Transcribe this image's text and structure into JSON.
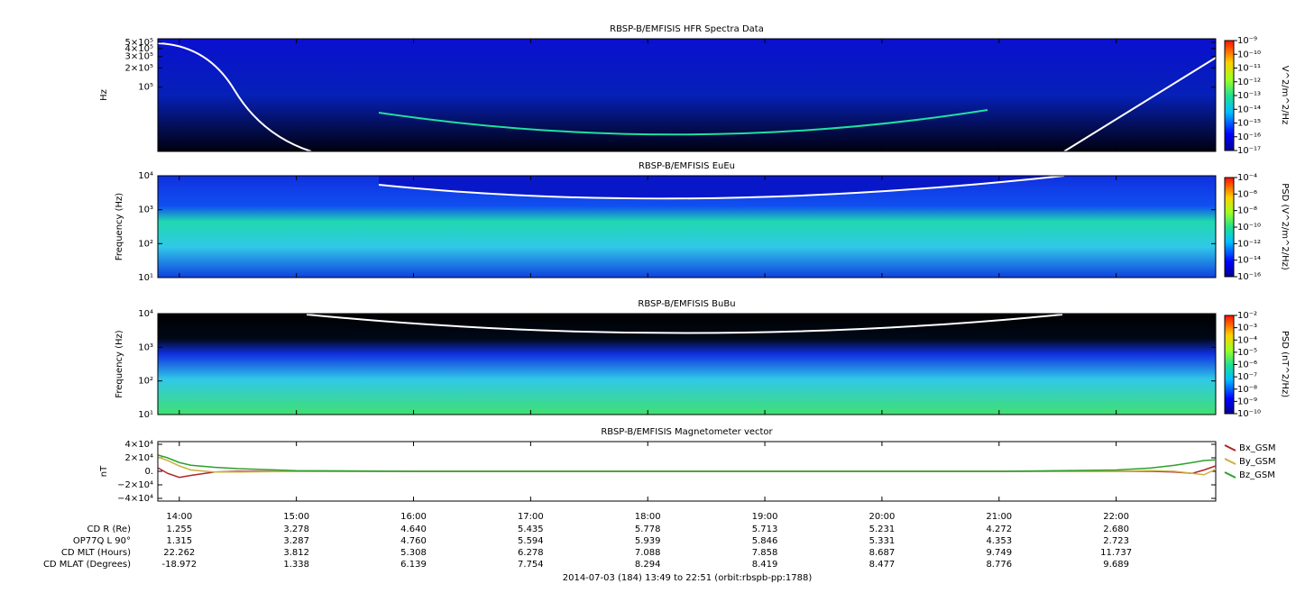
{
  "chart_data": [
    {
      "type": "spectrogram",
      "title": "RBSP-B/EMFISIS  HFR Spectra Data",
      "y_label": "Hz",
      "log_y": true,
      "ylim": [
        10000,
        567000
      ],
      "yticks": [
        {
          "value": 500000,
          "label": "5×10⁵"
        },
        {
          "value": 400000,
          "label": "4×10⁵"
        },
        {
          "value": 300000,
          "label": "3×10⁵"
        },
        {
          "value": 200000,
          "label": "2×10⁵"
        },
        {
          "value": 100000,
          "label": "10⁵"
        }
      ],
      "colorbar": {
        "label": "V^2/m^2/Hz",
        "log": true,
        "lim": [
          1e-17,
          1e-09
        ],
        "ticks": [
          {
            "value": 1e-09,
            "label": "10⁻⁹"
          },
          {
            "value": 1e-10,
            "label": "10⁻¹⁰"
          },
          {
            "value": 1e-11,
            "label": "10⁻¹¹"
          },
          {
            "value": 1e-12,
            "label": "10⁻¹²"
          },
          {
            "value": 1e-13,
            "label": "10⁻¹³"
          },
          {
            "value": 1e-14,
            "label": "10⁻¹⁴"
          },
          {
            "value": 1e-15,
            "label": "10⁻¹⁵"
          },
          {
            "value": 1e-16,
            "label": "10⁻¹⁶"
          },
          {
            "value": 1e-17,
            "label": "10⁻¹⁷"
          }
        ]
      }
    },
    {
      "type": "spectrogram",
      "title": "RBSP-B/EMFISIS  EuEu",
      "y_label": "Frequency (Hz)",
      "log_y": true,
      "ylim": [
        10,
        10000
      ],
      "yticks": [
        {
          "value": 10000,
          "label": "10⁴"
        },
        {
          "value": 1000,
          "label": "10³"
        },
        {
          "value": 100,
          "label": "10²"
        },
        {
          "value": 10,
          "label": "10¹"
        }
      ],
      "colorbar": {
        "label": "PSD (V^2/m^2/Hz)",
        "log": true,
        "lim": [
          1e-16,
          0.0001
        ],
        "ticks": [
          {
            "value": 0.0001,
            "label": "10⁻⁴"
          },
          {
            "value": 1e-06,
            "label": "10⁻⁶"
          },
          {
            "value": 1e-08,
            "label": "10⁻⁸"
          },
          {
            "value": 1e-10,
            "label": "10⁻¹⁰"
          },
          {
            "value": 1e-12,
            "label": "10⁻¹²"
          },
          {
            "value": 1e-14,
            "label": "10⁻¹⁴"
          },
          {
            "value": 1e-16,
            "label": "10⁻¹⁶"
          }
        ]
      }
    },
    {
      "type": "spectrogram",
      "title": "RBSP-B/EMFISIS  BuBu",
      "y_label": "Frequency (Hz)",
      "log_y": true,
      "ylim": [
        10,
        10000
      ],
      "yticks": [
        {
          "value": 10000,
          "label": "10⁴"
        },
        {
          "value": 1000,
          "label": "10³"
        },
        {
          "value": 100,
          "label": "10²"
        },
        {
          "value": 10,
          "label": "10¹"
        }
      ],
      "colorbar": {
        "label": "PSD (nT^2/Hz)",
        "log": true,
        "lim": [
          1e-10,
          0.01
        ],
        "ticks": [
          {
            "value": 0.01,
            "label": "10⁻²"
          },
          {
            "value": 0.001,
            "label": "10⁻³"
          },
          {
            "value": 0.0001,
            "label": "10⁻⁴"
          },
          {
            "value": 1e-05,
            "label": "10⁻⁵"
          },
          {
            "value": 1e-06,
            "label": "10⁻⁶"
          },
          {
            "value": 1e-07,
            "label": "10⁻⁷"
          },
          {
            "value": 1e-08,
            "label": "10⁻⁸"
          },
          {
            "value": 1e-09,
            "label": "10⁻⁹"
          },
          {
            "value": 1e-10,
            "label": "10⁻¹⁰"
          }
        ]
      }
    },
    {
      "type": "line",
      "title": "RBSP-B/EMFISIS  Magnetometer vector",
      "y_label": "nT",
      "legend": "right",
      "ylim": [
        -44000,
        44000
      ],
      "yticks": [
        {
          "value": 40000,
          "label": "4×10⁴"
        },
        {
          "value": 20000,
          "label": "2×10⁴"
        },
        {
          "value": 0,
          "label": "0."
        },
        {
          "value": -20000,
          "label": "−2×10⁴"
        },
        {
          "value": -40000,
          "label": "−4×10⁴"
        }
      ],
      "xlim": [
        13.8167,
        22.85
      ],
      "xticks": [
        {
          "value": 14,
          "label": "14:00"
        },
        {
          "value": 15,
          "label": "15:00"
        },
        {
          "value": 16,
          "label": "16:00"
        },
        {
          "value": 17,
          "label": "17:00"
        },
        {
          "value": 18,
          "label": "18:00"
        },
        {
          "value": 19,
          "label": "19:00"
        },
        {
          "value": 20,
          "label": "20:00"
        },
        {
          "value": 21,
          "label": "21:00"
        },
        {
          "value": 22,
          "label": "22:00"
        }
      ],
      "x": [
        13.82,
        13.9,
        14.0,
        14.1,
        14.3,
        14.5,
        15,
        16,
        17,
        18,
        19,
        20,
        21,
        22,
        22.3,
        22.5,
        22.65,
        22.75,
        22.85
      ],
      "series": [
        {
          "name": "Bx_GSM",
          "color": "#b2222a",
          "values": [
            5000,
            -3000,
            -9000,
            -6000,
            -1000,
            0,
            0,
            0,
            0,
            0,
            0,
            0,
            0,
            0,
            0,
            -1000,
            -3000,
            2000,
            8000
          ]
        },
        {
          "name": "By_GSM",
          "color": "#c8b040",
          "values": [
            21000,
            16000,
            8000,
            2000,
            -1000,
            -1000,
            0,
            0,
            0,
            0,
            0,
            0,
            0,
            0,
            1000,
            0,
            -3000,
            -5000,
            3000
          ]
        },
        {
          "name": "Bz_GSM",
          "color": "#2ca02c",
          "values": [
            24000,
            20000,
            13000,
            9000,
            6000,
            4000,
            1000,
            0,
            0,
            0,
            0,
            0,
            0,
            2000,
            5000,
            9000,
            13000,
            16000,
            17000
          ]
        }
      ]
    }
  ],
  "ephemeris": {
    "rows": [
      {
        "label": "CD R (Re)",
        "values": [
          "1.255",
          "3.278",
          "4.640",
          "5.435",
          "5.778",
          "5.713",
          "5.231",
          "4.272",
          "2.680"
        ]
      },
      {
        "label": "OP77Q L 90°",
        "values": [
          "1.315",
          "3.287",
          "4.760",
          "5.594",
          "5.939",
          "5.846",
          "5.331",
          "4.353",
          "2.723"
        ]
      },
      {
        "label": "CD MLT (Hours)",
        "values": [
          "22.262",
          "3.812",
          "5.308",
          "6.278",
          "7.088",
          "7.858",
          "8.687",
          "9.749",
          "11.737"
        ]
      },
      {
        "label": "CD MLAT (Degrees)",
        "values": [
          "-18.972",
          "1.338",
          "6.139",
          "7.754",
          "8.294",
          "8.419",
          "8.477",
          "8.776",
          "9.689"
        ]
      }
    ]
  },
  "footer": "2014-07-03 (184) 13:49 to 22:51 (orbit:rbspb-pp:1788)"
}
